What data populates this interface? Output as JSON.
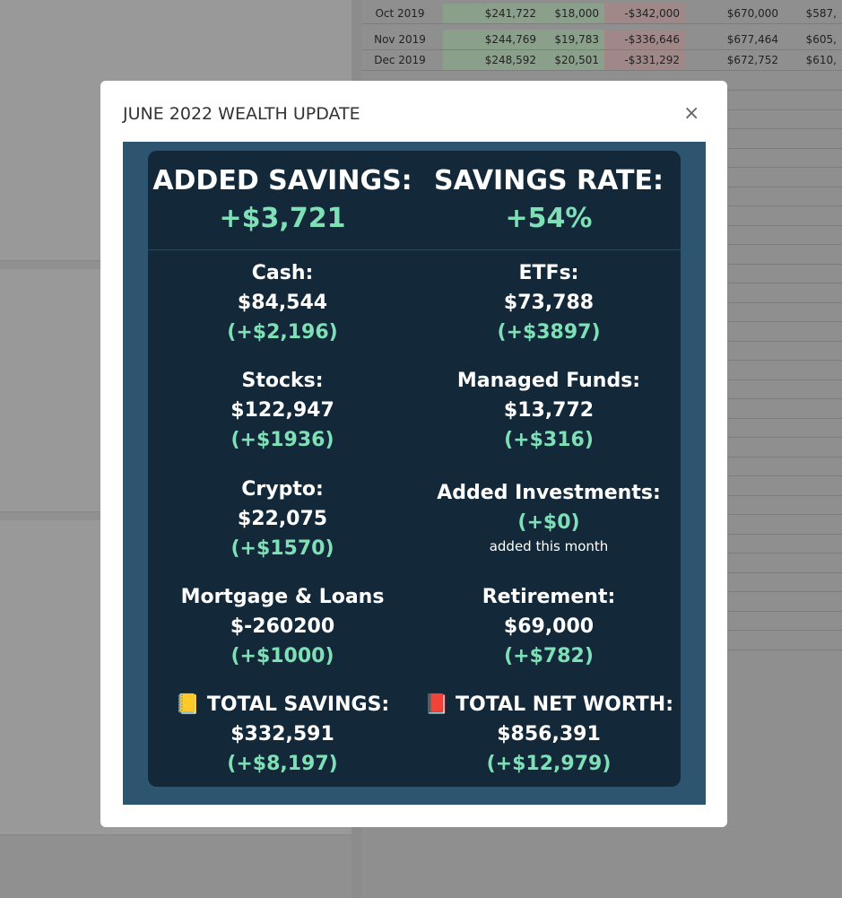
{
  "background_rows": [
    [
      "Oct 2019",
      "$241,722",
      "$18,000",
      "-$342,000",
      "$670,000",
      "$587,"
    ],
    [
      "Nov 2019",
      "$244,769",
      "$19,783",
      "-$336,646",
      "$677,464",
      "$605,"
    ],
    [
      "Dec 2019",
      "$248,592",
      "$20,501",
      "-$331,292",
      "$672,752",
      "$610,"
    ]
  ],
  "modal": {
    "title": "JUNE 2022 WEALTH UPDATE",
    "close": "×",
    "header": [
      {
        "label": "ADDED SAVINGS:",
        "value": "+$3,721"
      },
      {
        "label": "SAVINGS RATE:",
        "value": "+54%"
      }
    ],
    "items": [
      {
        "label": "Cash:",
        "value": "$84,544",
        "change": "(+$2,196)"
      },
      {
        "label": "ETFs:",
        "value": "$73,788",
        "change": "(+$3897)"
      },
      {
        "label": "Stocks:",
        "value": "$122,947",
        "change": "(+$1936)"
      },
      {
        "label": "Managed Funds:",
        "value": "$13,772",
        "change": "(+$316)"
      },
      {
        "label": "Crypto:",
        "value": "$22,075",
        "change": "(+$1570)"
      },
      {
        "label": "Added Investments:",
        "change": "(+$0)",
        "note": "added this month"
      },
      {
        "label": "Mortgage & Loans",
        "value": "$-260200",
        "change": "(+$1000)"
      },
      {
        "label": "Retirement:",
        "value": "$69,000",
        "change": "(+$782)"
      },
      {
        "label": "📒 TOTAL SAVINGS:",
        "value": "$332,591",
        "change": "(+$8,197)"
      },
      {
        "label": "📕 TOTAL NET WORTH:",
        "value": "$856,391",
        "change": "(+$12,979)"
      }
    ]
  }
}
